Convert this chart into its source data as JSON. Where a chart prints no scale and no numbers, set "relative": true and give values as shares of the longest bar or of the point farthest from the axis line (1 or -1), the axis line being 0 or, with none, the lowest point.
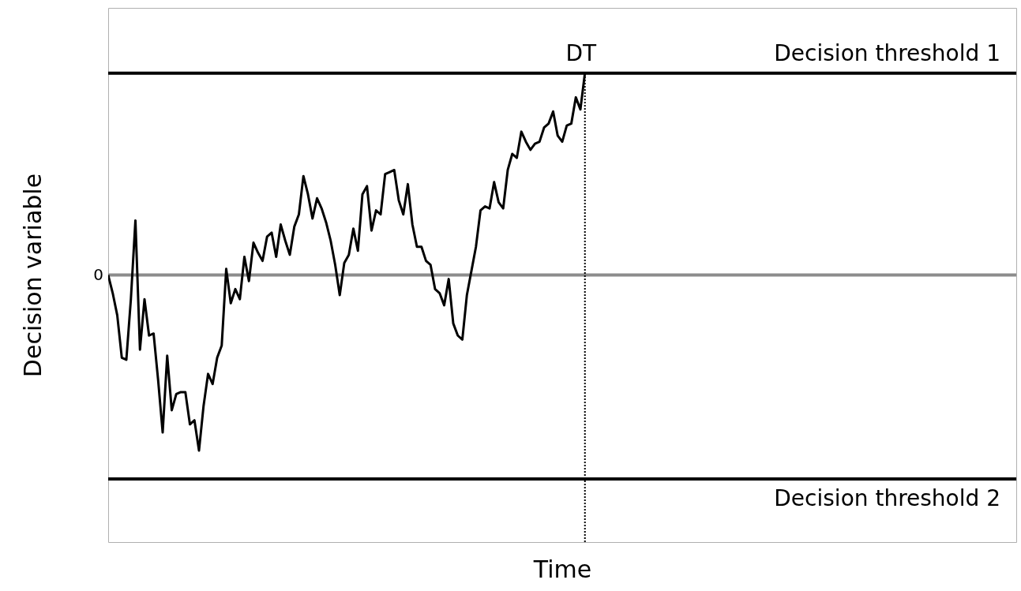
{
  "chart_data": {
    "type": "line",
    "xlabel": "Time",
    "ylabel": "Decision variable",
    "relative": true,
    "categories": [
      null,
      null,
      null,
      null,
      null,
      null,
      null,
      null,
      null,
      null,
      null,
      null,
      null,
      null,
      null,
      null,
      null,
      null,
      null,
      null,
      null,
      null,
      null,
      null,
      null,
      null,
      null,
      null,
      null,
      null,
      null,
      null,
      null,
      null,
      null,
      null,
      null,
      null,
      null,
      null,
      null,
      null,
      null,
      null,
      null,
      null,
      null,
      null,
      null,
      null,
      null,
      null,
      null,
      null,
      null,
      null,
      null,
      null,
      null,
      null,
      null,
      null,
      null,
      null,
      null,
      null,
      null,
      null,
      null,
      null,
      null,
      null,
      null,
      null,
      null,
      null,
      null,
      null,
      null,
      null,
      null,
      null,
      null,
      null,
      null,
      null,
      null,
      null,
      null,
      null,
      null,
      null,
      null,
      null,
      null,
      null,
      null,
      null,
      null,
      null,
      null,
      null,
      null,
      null,
      null,
      null,
      null,
      null,
      null,
      null,
      null,
      null,
      null,
      null,
      null,
      null,
      null,
      null,
      null,
      null,
      null,
      null,
      null,
      null,
      null,
      null,
      null,
      null,
      null,
      null,
      null,
      null,
      null,
      null,
      null,
      null,
      null,
      null,
      null,
      null,
      null,
      null,
      null,
      null,
      null,
      null,
      null,
      null,
      null,
      null,
      null,
      null,
      null,
      null,
      null,
      null,
      null,
      null,
      null,
      null,
      null,
      null,
      null,
      null,
      null,
      null,
      null,
      null,
      null,
      null,
      null,
      null,
      null,
      null,
      null,
      null,
      null,
      null,
      null,
      null,
      null,
      null,
      null,
      null,
      null,
      null,
      null,
      null,
      null,
      null,
      null,
      null,
      null,
      null,
      null,
      null,
      null,
      null,
      null,
      null,
      null
    ],
    "series": [
      {
        "color": "#000000",
        "values": [
          0,
          -0.09,
          -0.2,
          -0.41,
          -0.42,
          -0.12,
          0.27,
          -0.37,
          -0.12,
          -0.3,
          -0.29,
          -0.52,
          -0.78,
          -0.4,
          -0.67,
          -0.59,
          -0.58,
          -0.58,
          -0.74,
          -0.72,
          -0.87,
          -0.65,
          -0.49,
          -0.54,
          -0.41,
          -0.35,
          0.03,
          -0.14,
          -0.07,
          -0.12,
          0.09,
          -0.03,
          0.16,
          0.11,
          0.07,
          0.19,
          0.21,
          0.09,
          0.25,
          0.17,
          0.1,
          0.24,
          0.3,
          0.49,
          0.4,
          0.28,
          0.38,
          0.33,
          0.26,
          0.17,
          0.05,
          -0.1,
          0.06,
          0.1,
          0.23,
          0.12,
          0.4,
          0.44,
          0.22,
          0.32,
          0.3,
          0.5,
          0.51,
          0.52,
          0.37,
          0.3,
          0.45,
          0.25,
          0.14,
          0.14,
          0.07,
          0.05,
          -0.07,
          -0.09,
          -0.15,
          -0.02,
          -0.24,
          -0.3,
          -0.32,
          -0.1,
          0.02,
          0.14,
          0.32,
          0.34,
          0.33,
          0.46,
          0.36,
          0.33,
          0.52,
          0.6,
          0.58,
          0.71,
          0.66,
          0.62,
          0.65,
          0.66,
          0.73,
          0.75,
          0.81,
          0.69,
          0.66,
          0.74,
          0.75,
          0.88,
          0.82,
          1,
          null,
          null,
          null,
          null,
          null,
          null,
          null,
          null,
          null,
          null,
          null,
          null,
          null,
          null,
          null,
          null,
          null,
          null,
          null,
          null,
          null,
          null,
          null,
          null,
          null,
          null,
          null,
          null,
          null,
          null,
          null,
          null,
          null,
          null,
          null,
          null,
          null,
          null,
          null,
          null,
          null,
          null,
          null,
          null,
          null,
          null,
          null,
          null,
          null,
          null,
          null,
          null,
          null,
          null,
          null,
          null,
          null,
          null,
          null,
          null,
          null,
          null,
          null,
          null,
          null,
          null,
          null,
          null,
          null,
          null,
          null,
          null,
          null,
          null,
          null,
          null,
          null,
          null,
          null,
          null,
          null,
          null,
          null,
          null,
          null,
          null,
          null,
          null,
          null,
          null,
          null,
          null,
          null,
          null,
          null
        ]
      }
    ],
    "ref_lines": [
      {
        "axis": "y",
        "value": 1,
        "label": "Decision threshold 1",
        "color": "#000000",
        "line_style": "solid"
      },
      {
        "axis": "y",
        "value": -1.01,
        "label": "Decision threshold 2",
        "color": "#000000",
        "line_style": "solid"
      },
      {
        "axis": "x",
        "label": "DT",
        "color": "#000000",
        "line_style": "dotted"
      }
    ],
    "annotations": [
      "0"
    ]
  }
}
